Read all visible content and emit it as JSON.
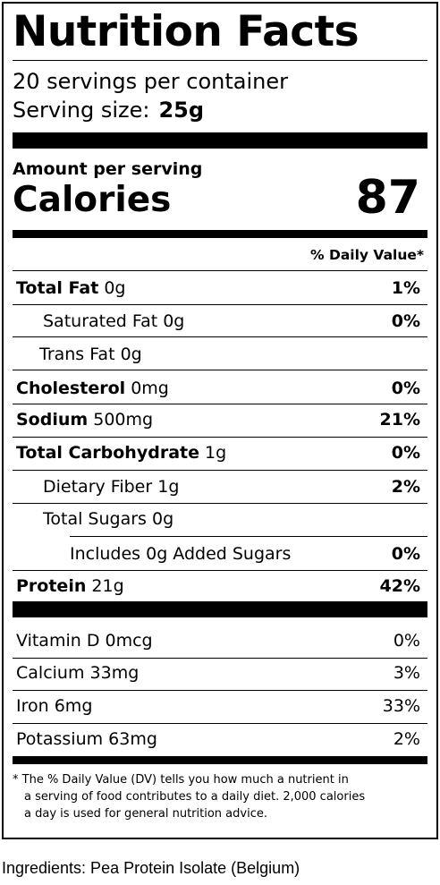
{
  "label": {
    "title": "Nutrition Facts",
    "servings_per_container": "20 servings per container",
    "serving_size_label": "Serving size:",
    "serving_size_value": "25g",
    "amount_per_serving": "Amount per serving",
    "calories_label": "Calories",
    "calories_value": "87",
    "dv_header": "% Daily Value*",
    "nutrients": [
      {
        "name": "Total Fat",
        "amount": "0g",
        "dv": "1%"
      },
      {
        "name": "Saturated Fat",
        "amount": "0g",
        "dv": "0%"
      },
      {
        "name": "Trans Fat",
        "amount": "0g",
        "dv": ""
      },
      {
        "name": "Cholesterol",
        "amount": "0mg",
        "dv": "0%"
      },
      {
        "name": "Sodium",
        "amount": "500mg",
        "dv": "21%"
      },
      {
        "name": "Total Carbohydrate",
        "amount": "1g",
        "dv": "0%"
      },
      {
        "name": "Dietary Fiber",
        "amount": "1g",
        "dv": "2%"
      },
      {
        "name": "Total Sugars",
        "amount": "0g",
        "dv": ""
      },
      {
        "name": "Includes 0g Added Sugars",
        "amount": "",
        "dv": "0%"
      },
      {
        "name": "Protein",
        "amount": "21g",
        "dv": "42%"
      }
    ],
    "vitamins": [
      {
        "name": "Vitamin D",
        "amount": "0mcg",
        "dv": "0%"
      },
      {
        "name": "Calcium",
        "amount": "33mg",
        "dv": "3%"
      },
      {
        "name": "Iron",
        "amount": "6mg",
        "dv": "33%"
      },
      {
        "name": "Potassium",
        "amount": "63mg",
        "dv": "2%"
      }
    ],
    "footnote": [
      "* The % Daily Value (DV) tells you how much a nutrient in",
      "a serving of food contributes to a daily diet. 2,000 calories",
      "a day is used for general nutrition advice."
    ]
  },
  "ingredients": "Ingredients: Pea Protein Isolate (Belgium)"
}
